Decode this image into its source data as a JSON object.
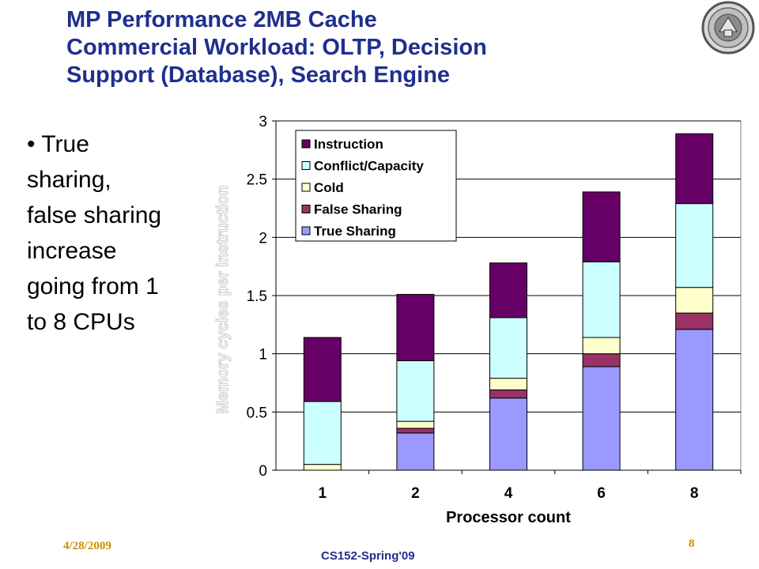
{
  "slide": {
    "title_lines": [
      "MP Performance 2MB Cache",
      "Commercial Workload: OLTP, Decision",
      "Support (Database), Search Engine"
    ],
    "bullet_marker": "•",
    "bullet_lines": [
      "True",
      "sharing,",
      "false sharing",
      "increase",
      "going from 1",
      "to 8 CPUs"
    ],
    "footer_date": "4/28/2009",
    "footer_page": "8",
    "footer_course": "CS152-Spring'09"
  },
  "colors": {
    "title": "#1f2f8f",
    "footer_accent": "#c79200"
  },
  "chart_data": {
    "type": "bar",
    "stacked": true,
    "categories": [
      "1",
      "2",
      "4",
      "6",
      "8"
    ],
    "xlabel": "Processor count",
    "ylabel": "Memory cycles per instruction",
    "ylim": [
      0,
      3
    ],
    "yticks": [
      "0",
      "0.5",
      "1",
      "1.5",
      "2",
      "2.5",
      "3"
    ],
    "grid": true,
    "legend_position": "top-left",
    "series": [
      {
        "name": "True Sharing",
        "color": "#9999ff",
        "values": [
          0.0,
          0.32,
          0.62,
          0.89,
          1.21
        ]
      },
      {
        "name": "False Sharing",
        "color": "#993366",
        "values": [
          0.0,
          0.04,
          0.07,
          0.11,
          0.14
        ]
      },
      {
        "name": "Cold",
        "color": "#ffffcc",
        "values": [
          0.05,
          0.06,
          0.1,
          0.14,
          0.22
        ]
      },
      {
        "name": "Conflict/Capacity",
        "color": "#ccffff",
        "values": [
          0.54,
          0.52,
          0.52,
          0.65,
          0.72
        ]
      },
      {
        "name": "Instruction",
        "color": "#660066",
        "values": [
          0.55,
          0.57,
          0.47,
          0.6,
          0.6
        ]
      }
    ],
    "legend_order": [
      "Instruction",
      "Conflict/Capacity",
      "Cold",
      "False Sharing",
      "True Sharing"
    ]
  }
}
